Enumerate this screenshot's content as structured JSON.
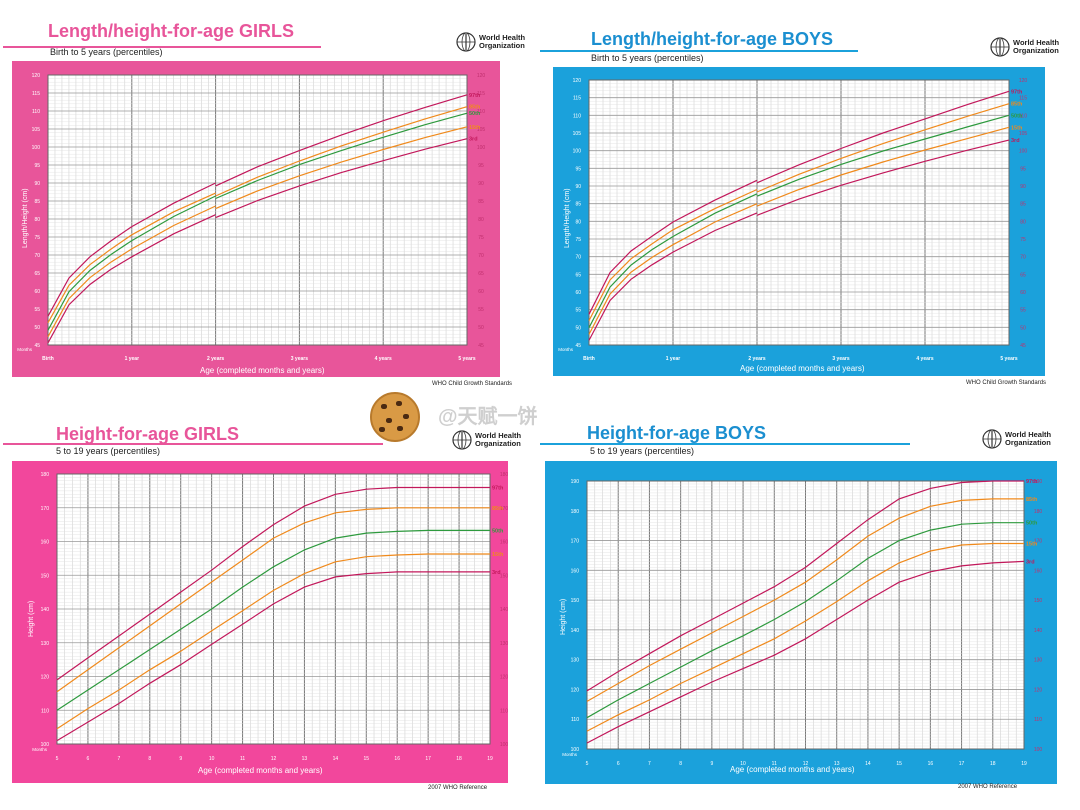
{
  "watermark": "@天赋一饼",
  "logo_text_1": "World Health",
  "logo_text_2": "Organization",
  "panels": [
    {
      "title": "Length/height-for-age GIRLS",
      "subtitle": "Birth to 5 years (percentiles)",
      "ylabel": "Length/Height (cm)",
      "xlabel": "Age (completed months and years)",
      "source": "WHO Child Growth Standards",
      "color": "#e8559a",
      "title_color": "#e8559a",
      "tick_color": "#c0306e",
      "xrow_label": "Months"
    },
    {
      "title": "Length/height-for-age BOYS",
      "subtitle": "Birth to 5 years (percentiles)",
      "ylabel": "Length/Height (cm)",
      "xlabel": "Age (completed months and years)",
      "source": "WHO Child Growth Standards",
      "color": "#1ba1db",
      "title_color": "#1b8fd0",
      "tick_color": "#c0306e",
      "xrow_label": "Months"
    },
    {
      "title": "Height-for-age  GIRLS",
      "subtitle": "5 to 19 years (percentiles)",
      "ylabel": "Height (cm)",
      "xlabel": "Age (completed months and years)",
      "source": "2007 WHO Reference",
      "color": "#f2479c",
      "title_color": "#e8559a",
      "tick_color": "#c0306e",
      "xrow_label": "Months"
    },
    {
      "title": "Height-for-age  BOYS",
      "subtitle": "5 to 19 years (percentiles)",
      "ylabel": "Height (cm)",
      "xlabel": "Age (completed months and years)",
      "source": "2007 WHO Reference",
      "color": "#1ba1db",
      "title_color": "#1b8fd0",
      "tick_color": "#c0306e",
      "xrow_label": "Months"
    }
  ],
  "chart_data": [
    {
      "type": "line",
      "title": "Length/height-for-age GIRLS",
      "xlabel": "Age (completed months and years)",
      "ylabel": "Length/Height (cm)",
      "x_unit": "months",
      "xlim": [
        0,
        60
      ],
      "ylim": [
        45,
        120
      ],
      "yticks": [
        45,
        50,
        55,
        60,
        65,
        70,
        75,
        80,
        85,
        90,
        95,
        100,
        105,
        110,
        115,
        120
      ],
      "year_ticks": [
        {
          "x": 0,
          "label": "Birth"
        },
        {
          "x": 12,
          "label": "1 year"
        },
        {
          "x": 24,
          "label": "2 years"
        },
        {
          "x": 36,
          "label": "3 years"
        },
        {
          "x": 48,
          "label": "4 years"
        },
        {
          "x": 60,
          "label": "5 years"
        }
      ],
      "x": [
        0,
        3,
        6,
        9,
        12,
        18,
        24,
        24,
        30,
        36,
        42,
        48,
        54,
        60
      ],
      "series": [
        {
          "name": "97th",
          "color": "#c2185b",
          "values": [
            53.0,
            63.6,
            69.5,
            73.9,
            77.9,
            84.4,
            90.0,
            89.2,
            94.5,
            99.0,
            103.3,
            107.3,
            111.0,
            114.5
          ]
        },
        {
          "name": "85th",
          "color": "#f08a1c",
          "values": [
            51.2,
            61.6,
            67.3,
            71.6,
            75.6,
            82.0,
            87.2,
            86.4,
            91.6,
            96.1,
            100.3,
            104.1,
            107.8,
            111.2
          ]
        },
        {
          "name": "50th",
          "color": "#2e9a3e",
          "values": [
            49.1,
            59.8,
            65.7,
            70.1,
            74.0,
            80.7,
            86.4,
            85.7,
            90.7,
            95.1,
            99.0,
            102.7,
            106.2,
            109.4
          ]
        },
        {
          "name": "15th",
          "color": "#f08a1c",
          "values": [
            47.3,
            57.9,
            63.7,
            68.0,
            71.7,
            78.2,
            83.6,
            82.9,
            87.8,
            92.0,
            95.8,
            99.3,
            102.6,
            105.6
          ]
        },
        {
          "name": "3rd",
          "color": "#c2185b",
          "values": [
            45.6,
            56.2,
            61.8,
            66.0,
            69.5,
            75.9,
            81.2,
            80.4,
            85.1,
            89.2,
            92.9,
            96.2,
            99.4,
            102.3
          ]
        }
      ]
    },
    {
      "type": "line",
      "title": "Length/height-for-age BOYS",
      "xlabel": "Age (completed months and years)",
      "ylabel": "Length/Height (cm)",
      "x_unit": "months",
      "xlim": [
        0,
        60
      ],
      "ylim": [
        45,
        120
      ],
      "yticks": [
        45,
        50,
        55,
        60,
        65,
        70,
        75,
        80,
        85,
        90,
        95,
        100,
        105,
        110,
        115,
        120
      ],
      "year_ticks": [
        {
          "x": 0,
          "label": "Birth"
        },
        {
          "x": 12,
          "label": "1 year"
        },
        {
          "x": 24,
          "label": "2 years"
        },
        {
          "x": 36,
          "label": "3 years"
        },
        {
          "x": 48,
          "label": "4 years"
        },
        {
          "x": 60,
          "label": "5 years"
        }
      ],
      "x": [
        0,
        3,
        6,
        9,
        12,
        18,
        24,
        24,
        30,
        36,
        42,
        48,
        54,
        60
      ],
      "series": [
        {
          "name": "97th",
          "color": "#c2185b",
          "values": [
            53.7,
            65.5,
            71.6,
            75.8,
            79.8,
            86.0,
            91.6,
            90.9,
            96.0,
            100.6,
            105.0,
            109.0,
            113.0,
            116.8
          ]
        },
        {
          "name": "85th",
          "color": "#f08a1c",
          "values": [
            51.9,
            63.4,
            69.4,
            73.6,
            77.6,
            83.6,
            89.0,
            88.3,
            93.3,
            97.8,
            102.0,
            105.9,
            109.7,
            113.3
          ]
        },
        {
          "name": "50th",
          "color": "#2e9a3e",
          "values": [
            49.9,
            61.4,
            67.6,
            72.0,
            75.7,
            82.3,
            87.8,
            87.1,
            91.9,
            96.1,
            99.9,
            103.3,
            106.7,
            110.0
          ]
        },
        {
          "name": "15th",
          "color": "#f08a1c",
          "values": [
            48.0,
            59.4,
            65.6,
            69.8,
            73.4,
            79.8,
            85.0,
            84.3,
            89.0,
            93.1,
            96.8,
            100.2,
            103.4,
            106.6
          ]
        },
        {
          "name": "3rd",
          "color": "#c2185b",
          "values": [
            46.3,
            57.6,
            63.6,
            67.7,
            71.3,
            77.4,
            82.4,
            81.7,
            86.3,
            90.2,
            93.7,
            97.0,
            100.1,
            103.0
          ]
        }
      ]
    },
    {
      "type": "line",
      "title": "Height-for-age  GIRLS",
      "xlabel": "Age (completed months and years)",
      "ylabel": "Height (cm)",
      "x_unit": "years",
      "xlim": [
        5,
        19
      ],
      "ylim": [
        100,
        180
      ],
      "yticks": [
        100,
        110,
        120,
        130,
        140,
        150,
        160,
        170,
        180
      ],
      "xticks": [
        5,
        6,
        7,
        8,
        9,
        10,
        11,
        12,
        13,
        14,
        15,
        16,
        17,
        18,
        19
      ],
      "x": [
        5,
        6,
        7,
        8,
        9,
        10,
        11,
        12,
        13,
        14,
        15,
        16,
        17,
        18,
        19
      ],
      "series": [
        {
          "name": "97th",
          "color": "#c2185b",
          "values": [
            119,
            125.5,
            132,
            138.5,
            145,
            151.5,
            158.5,
            165,
            170.5,
            174,
            175.5,
            176,
            176,
            176,
            176
          ]
        },
        {
          "name": "85th",
          "color": "#f08a1c",
          "values": [
            115.5,
            122,
            128.5,
            135,
            141.5,
            148,
            154.5,
            161,
            165.5,
            168.5,
            169.5,
            170,
            170,
            170,
            170
          ]
        },
        {
          "name": "50th",
          "color": "#2e9a3e",
          "values": [
            110,
            116,
            122,
            128,
            134,
            140,
            146.5,
            152.5,
            157.5,
            161,
            162.5,
            163,
            163.3,
            163.3,
            163.3
          ]
        },
        {
          "name": "15th",
          "color": "#f08a1c",
          "values": [
            104.5,
            110.5,
            116,
            122,
            127.5,
            133.5,
            139.5,
            145.5,
            150.5,
            154,
            155.5,
            156,
            156.3,
            156.3,
            156.3
          ]
        },
        {
          "name": "3rd",
          "color": "#c2185b",
          "values": [
            101,
            106.5,
            112,
            118,
            123.5,
            129.5,
            135.5,
            141.5,
            146.5,
            149.5,
            150.5,
            151,
            151,
            151,
            151
          ]
        }
      ]
    },
    {
      "type": "line",
      "title": "Height-for-age  BOYS",
      "xlabel": "Age (completed months and years)",
      "ylabel": "Height (cm)",
      "x_unit": "years",
      "xlim": [
        5,
        19
      ],
      "ylim": [
        100,
        190
      ],
      "yticks": [
        100,
        110,
        120,
        130,
        140,
        150,
        160,
        170,
        180,
        190
      ],
      "xticks": [
        5,
        6,
        7,
        8,
        9,
        10,
        11,
        12,
        13,
        14,
        15,
        16,
        17,
        18,
        19
      ],
      "x": [
        5,
        6,
        7,
        8,
        9,
        10,
        11,
        12,
        13,
        14,
        15,
        16,
        17,
        18,
        19
      ],
      "series": [
        {
          "name": "97th",
          "color": "#c2185b",
          "values": [
            119.5,
            126,
            132,
            138,
            143.5,
            149,
            154.5,
            161,
            169,
            177,
            184,
            187.5,
            189.5,
            190,
            190
          ]
        },
        {
          "name": "85th",
          "color": "#f08a1c",
          "values": [
            116,
            122,
            128,
            133.5,
            139,
            144.5,
            150,
            156,
            163.5,
            171.5,
            177.5,
            181.5,
            183.5,
            184,
            184
          ]
        },
        {
          "name": "50th",
          "color": "#2e9a3e",
          "values": [
            110.5,
            116.5,
            122,
            127.5,
            133,
            138,
            143.5,
            149.5,
            156.5,
            164,
            170,
            173.5,
            175.5,
            176,
            176
          ]
        },
        {
          "name": "15th",
          "color": "#f08a1c",
          "values": [
            106,
            111.5,
            116.5,
            122,
            127,
            132,
            137,
            143,
            149.5,
            156.5,
            162.5,
            166.5,
            168.5,
            169,
            169
          ]
        },
        {
          "name": "3rd",
          "color": "#c2185b",
          "values": [
            102,
            107.5,
            112.5,
            117.5,
            122.5,
            127,
            131.5,
            137,
            143.5,
            150,
            156,
            159.5,
            161.5,
            162.5,
            163
          ]
        }
      ]
    }
  ]
}
